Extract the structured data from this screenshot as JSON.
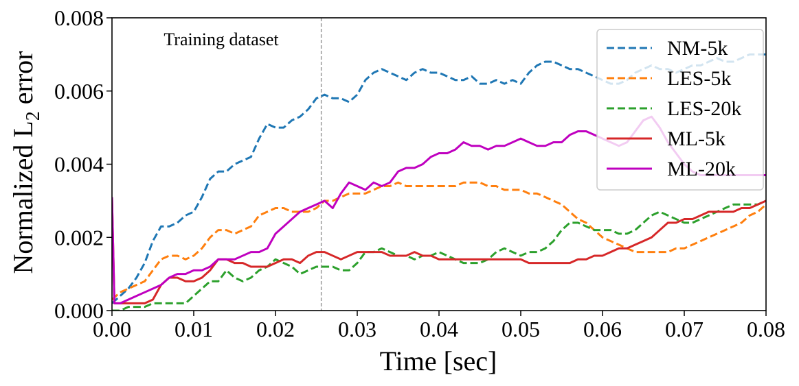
{
  "chart_data": {
    "type": "line",
    "title": "",
    "xlabel": "Time [sec]",
    "ylabel_main": "Normalized L",
    "ylabel_sub": "2",
    "ylabel_tail": " error",
    "xlim": [
      0.0,
      0.08
    ],
    "ylim": [
      0.0,
      0.008
    ],
    "xticks": [
      0.0,
      0.01,
      0.02,
      0.03,
      0.04,
      0.05,
      0.06,
      0.07,
      0.08
    ],
    "xtick_labels": [
      "0.00",
      "0.01",
      "0.02",
      "0.03",
      "0.04",
      "0.05",
      "0.06",
      "0.07",
      "0.08"
    ],
    "yticks": [
      0.0,
      0.002,
      0.004,
      0.006,
      0.008
    ],
    "ytick_labels": [
      "0.000",
      "0.002",
      "0.004",
      "0.006",
      "0.008"
    ],
    "grid": false,
    "legend_position": "top-right",
    "annotation": {
      "text": "Training dataset",
      "x_divider": 0.0256
    },
    "series": [
      {
        "name": "NM-5k",
        "color": "#1f77b4",
        "style": "dashed",
        "x": [
          0.0,
          0.001,
          0.002,
          0.003,
          0.004,
          0.005,
          0.006,
          0.007,
          0.008,
          0.009,
          0.01,
          0.011,
          0.012,
          0.013,
          0.014,
          0.015,
          0.016,
          0.017,
          0.018,
          0.019,
          0.02,
          0.021,
          0.022,
          0.023,
          0.024,
          0.025,
          0.026,
          0.027,
          0.028,
          0.029,
          0.03,
          0.031,
          0.032,
          0.033,
          0.034,
          0.035,
          0.036,
          0.037,
          0.038,
          0.039,
          0.04,
          0.041,
          0.042,
          0.043,
          0.044,
          0.045,
          0.046,
          0.047,
          0.048,
          0.049,
          0.05,
          0.051,
          0.052,
          0.053,
          0.054,
          0.055,
          0.056,
          0.057,
          0.058,
          0.059,
          0.06,
          0.061,
          0.062,
          0.063,
          0.064,
          0.065,
          0.066,
          0.067,
          0.068,
          0.069,
          0.07,
          0.071,
          0.072,
          0.073,
          0.074,
          0.075,
          0.076,
          0.077,
          0.078,
          0.079,
          0.08
        ],
        "y": [
          0.0002,
          0.0004,
          0.0006,
          0.0009,
          0.0013,
          0.0019,
          0.0023,
          0.0023,
          0.0024,
          0.0026,
          0.0027,
          0.0031,
          0.0036,
          0.0038,
          0.0038,
          0.004,
          0.0041,
          0.0042,
          0.0047,
          0.0051,
          0.005,
          0.005,
          0.0052,
          0.0053,
          0.0055,
          0.0058,
          0.0059,
          0.0058,
          0.0058,
          0.0057,
          0.0059,
          0.0063,
          0.0065,
          0.0066,
          0.0065,
          0.0064,
          0.0063,
          0.0065,
          0.0066,
          0.0065,
          0.0065,
          0.0064,
          0.0063,
          0.0063,
          0.0064,
          0.0062,
          0.0062,
          0.0063,
          0.0062,
          0.0063,
          0.0062,
          0.0065,
          0.0067,
          0.0068,
          0.0068,
          0.0067,
          0.0066,
          0.0066,
          0.0065,
          0.0064,
          0.0063,
          0.0062,
          0.0062,
          0.0063,
          0.0065,
          0.0066,
          0.0067,
          0.0066,
          0.0066,
          0.0065,
          0.0066,
          0.0067,
          0.0067,
          0.0068,
          0.0069,
          0.0068,
          0.0068,
          0.0069,
          0.007,
          0.007,
          0.007
        ]
      },
      {
        "name": "LES-5k",
        "color": "#ff7f0e",
        "style": "dashed",
        "x": [
          0.0,
          0.001,
          0.002,
          0.003,
          0.004,
          0.005,
          0.006,
          0.007,
          0.008,
          0.009,
          0.01,
          0.011,
          0.012,
          0.013,
          0.014,
          0.015,
          0.016,
          0.017,
          0.018,
          0.019,
          0.02,
          0.021,
          0.022,
          0.023,
          0.024,
          0.025,
          0.026,
          0.027,
          0.028,
          0.029,
          0.03,
          0.031,
          0.032,
          0.033,
          0.034,
          0.035,
          0.036,
          0.037,
          0.038,
          0.039,
          0.04,
          0.041,
          0.042,
          0.043,
          0.044,
          0.045,
          0.046,
          0.047,
          0.048,
          0.049,
          0.05,
          0.051,
          0.052,
          0.053,
          0.054,
          0.055,
          0.056,
          0.057,
          0.058,
          0.059,
          0.06,
          0.061,
          0.062,
          0.063,
          0.064,
          0.065,
          0.066,
          0.067,
          0.068,
          0.069,
          0.07,
          0.071,
          0.072,
          0.073,
          0.074,
          0.075,
          0.076,
          0.077,
          0.078,
          0.079,
          0.08
        ],
        "y": [
          0.0003,
          0.0005,
          0.0006,
          0.0007,
          0.0008,
          0.0011,
          0.0014,
          0.0015,
          0.0015,
          0.0014,
          0.0015,
          0.0017,
          0.002,
          0.0022,
          0.0022,
          0.0021,
          0.0022,
          0.0023,
          0.0026,
          0.0027,
          0.0028,
          0.0028,
          0.0027,
          0.0027,
          0.0027,
          0.0028,
          0.003,
          0.003,
          0.0031,
          0.0032,
          0.0032,
          0.0032,
          0.0033,
          0.0034,
          0.0034,
          0.0035,
          0.0034,
          0.0034,
          0.0034,
          0.0034,
          0.0034,
          0.0034,
          0.0034,
          0.0035,
          0.0035,
          0.0035,
          0.0034,
          0.0034,
          0.0033,
          0.0033,
          0.0033,
          0.0032,
          0.0032,
          0.0031,
          0.003,
          0.0029,
          0.0027,
          0.0025,
          0.0024,
          0.0022,
          0.002,
          0.0019,
          0.0018,
          0.0017,
          0.0016,
          0.0016,
          0.0016,
          0.0016,
          0.0016,
          0.0017,
          0.0017,
          0.0018,
          0.0019,
          0.002,
          0.0021,
          0.0022,
          0.0023,
          0.0024,
          0.0026,
          0.0027,
          0.0029
        ]
      },
      {
        "name": "LES-20k",
        "color": "#2ca02c",
        "style": "dashed",
        "x": [
          0.0,
          0.001,
          0.002,
          0.003,
          0.004,
          0.005,
          0.006,
          0.007,
          0.008,
          0.009,
          0.01,
          0.011,
          0.012,
          0.013,
          0.014,
          0.015,
          0.016,
          0.017,
          0.018,
          0.019,
          0.02,
          0.021,
          0.022,
          0.023,
          0.024,
          0.025,
          0.026,
          0.027,
          0.028,
          0.029,
          0.03,
          0.031,
          0.032,
          0.033,
          0.034,
          0.035,
          0.036,
          0.037,
          0.038,
          0.039,
          0.04,
          0.041,
          0.042,
          0.043,
          0.044,
          0.045,
          0.046,
          0.047,
          0.048,
          0.049,
          0.05,
          0.051,
          0.052,
          0.053,
          0.054,
          0.055,
          0.056,
          0.057,
          0.058,
          0.059,
          0.06,
          0.061,
          0.062,
          0.063,
          0.064,
          0.065,
          0.066,
          0.067,
          0.068,
          0.069,
          0.07,
          0.071,
          0.072,
          0.073,
          0.074,
          0.075,
          0.076,
          0.077,
          0.078,
          0.079,
          0.08
        ],
        "y": [
          0.0,
          0.0,
          0.0001,
          0.0001,
          0.0001,
          0.0002,
          0.0002,
          0.0002,
          0.0002,
          0.0002,
          0.0004,
          0.0006,
          0.0008,
          0.0008,
          0.0011,
          0.0009,
          0.0008,
          0.0009,
          0.0011,
          0.0012,
          0.0014,
          0.0013,
          0.0012,
          0.001,
          0.0011,
          0.0012,
          0.0012,
          0.0012,
          0.0011,
          0.0011,
          0.0013,
          0.0016,
          0.0016,
          0.0017,
          0.0016,
          0.0015,
          0.0015,
          0.0014,
          0.0015,
          0.0015,
          0.0016,
          0.0015,
          0.0014,
          0.0013,
          0.0013,
          0.0013,
          0.0014,
          0.0016,
          0.0017,
          0.0016,
          0.0015,
          0.0016,
          0.0016,
          0.0017,
          0.0019,
          0.0022,
          0.0024,
          0.0024,
          0.0023,
          0.0022,
          0.0022,
          0.0022,
          0.0021,
          0.0021,
          0.0022,
          0.0024,
          0.0026,
          0.0027,
          0.0026,
          0.0025,
          0.0024,
          0.0024,
          0.0025,
          0.0026,
          0.0027,
          0.0028,
          0.0029,
          0.0029,
          0.0029,
          0.0029,
          0.003
        ]
      },
      {
        "name": "ML-5k",
        "color": "#d62728",
        "style": "solid",
        "x": [
          0.0,
          0.0003,
          0.001,
          0.002,
          0.003,
          0.004,
          0.005,
          0.006,
          0.007,
          0.008,
          0.009,
          0.01,
          0.011,
          0.012,
          0.013,
          0.014,
          0.015,
          0.016,
          0.017,
          0.018,
          0.019,
          0.02,
          0.021,
          0.022,
          0.023,
          0.024,
          0.025,
          0.026,
          0.027,
          0.028,
          0.029,
          0.03,
          0.031,
          0.032,
          0.033,
          0.034,
          0.035,
          0.036,
          0.037,
          0.038,
          0.039,
          0.04,
          0.041,
          0.042,
          0.043,
          0.044,
          0.045,
          0.046,
          0.047,
          0.048,
          0.049,
          0.05,
          0.051,
          0.052,
          0.053,
          0.054,
          0.055,
          0.056,
          0.057,
          0.058,
          0.059,
          0.06,
          0.061,
          0.062,
          0.063,
          0.064,
          0.065,
          0.066,
          0.067,
          0.068,
          0.069,
          0.07,
          0.071,
          0.072,
          0.073,
          0.074,
          0.075,
          0.076,
          0.077,
          0.078,
          0.079,
          0.08
        ],
        "y": [
          0.0031,
          0.0002,
          0.0002,
          0.0002,
          0.0002,
          0.0002,
          0.0003,
          0.0007,
          0.0009,
          0.0009,
          0.0008,
          0.0008,
          0.0009,
          0.0011,
          0.0014,
          0.0014,
          0.0013,
          0.0013,
          0.0012,
          0.0012,
          0.0012,
          0.0013,
          0.0014,
          0.0014,
          0.0013,
          0.0015,
          0.0016,
          0.0016,
          0.0015,
          0.0014,
          0.0015,
          0.0016,
          0.0016,
          0.0016,
          0.0016,
          0.0015,
          0.0015,
          0.0015,
          0.0016,
          0.0015,
          0.0015,
          0.0014,
          0.0014,
          0.0014,
          0.0014,
          0.0014,
          0.0014,
          0.0014,
          0.0014,
          0.0014,
          0.0014,
          0.0014,
          0.0013,
          0.0013,
          0.0013,
          0.0013,
          0.0013,
          0.0013,
          0.0014,
          0.0014,
          0.0015,
          0.0015,
          0.0016,
          0.0017,
          0.0017,
          0.0018,
          0.0019,
          0.002,
          0.0022,
          0.0024,
          0.0024,
          0.0025,
          0.0025,
          0.0026,
          0.0027,
          0.0027,
          0.0027,
          0.0027,
          0.0028,
          0.0028,
          0.0029,
          0.003
        ]
      },
      {
        "name": "ML-20k",
        "color": "#bf00bf",
        "style": "solid",
        "x": [
          0.0,
          0.0003,
          0.001,
          0.002,
          0.003,
          0.004,
          0.005,
          0.006,
          0.007,
          0.008,
          0.009,
          0.01,
          0.011,
          0.012,
          0.013,
          0.014,
          0.015,
          0.016,
          0.017,
          0.018,
          0.019,
          0.02,
          0.021,
          0.022,
          0.023,
          0.024,
          0.025,
          0.026,
          0.027,
          0.028,
          0.029,
          0.03,
          0.031,
          0.032,
          0.033,
          0.034,
          0.035,
          0.036,
          0.037,
          0.038,
          0.039,
          0.04,
          0.041,
          0.042,
          0.043,
          0.044,
          0.045,
          0.046,
          0.047,
          0.048,
          0.049,
          0.05,
          0.051,
          0.052,
          0.053,
          0.054,
          0.055,
          0.056,
          0.057,
          0.058,
          0.059,
          0.06,
          0.061,
          0.062,
          0.063,
          0.064,
          0.065,
          0.066,
          0.067,
          0.068,
          0.069,
          0.07,
          0.071,
          0.072,
          0.073,
          0.074,
          0.075,
          0.076,
          0.077,
          0.078,
          0.079,
          0.08
        ],
        "y": [
          0.0031,
          0.0002,
          0.0002,
          0.0003,
          0.0004,
          0.0005,
          0.0006,
          0.0007,
          0.0009,
          0.001,
          0.001,
          0.0011,
          0.0011,
          0.0012,
          0.0014,
          0.0014,
          0.0014,
          0.0015,
          0.0016,
          0.0016,
          0.0017,
          0.0021,
          0.0023,
          0.0025,
          0.0027,
          0.0028,
          0.0029,
          0.003,
          0.0028,
          0.0032,
          0.0035,
          0.0034,
          0.0033,
          0.0035,
          0.0034,
          0.0035,
          0.0038,
          0.0039,
          0.0039,
          0.004,
          0.0042,
          0.0043,
          0.0043,
          0.0044,
          0.0046,
          0.0045,
          0.0045,
          0.0044,
          0.0045,
          0.0045,
          0.0046,
          0.0047,
          0.0046,
          0.0045,
          0.0045,
          0.0046,
          0.0046,
          0.0048,
          0.0049,
          0.0049,
          0.0048,
          0.0047,
          0.0046,
          0.0045,
          0.0046,
          0.0049,
          0.0052,
          0.0053,
          0.005,
          0.0046,
          0.0043,
          0.004,
          0.0038,
          0.0037,
          0.0037,
          0.0037,
          0.0037,
          0.0037,
          0.0037,
          0.0037,
          0.0037,
          0.0037
        ]
      }
    ]
  }
}
